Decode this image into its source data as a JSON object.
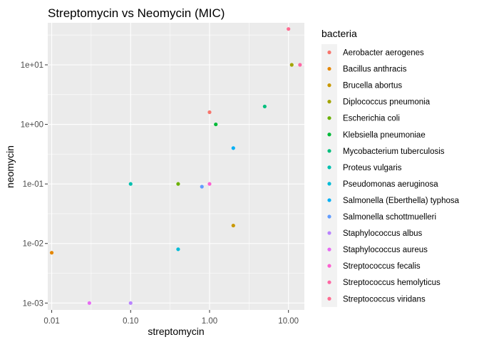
{
  "chart_data": {
    "type": "scatter",
    "title": "Streptomycin vs Neomycin (MIC)",
    "xlabel": "streptomycin",
    "ylabel": "neomycin",
    "x_scale": "log10",
    "y_scale": "log10",
    "xlim": [
      0.00891,
      15.9
    ],
    "ylim": [
      0.000766,
      50.8
    ],
    "x_ticks": [
      {
        "value": 0.01,
        "label": "0.01"
      },
      {
        "value": 0.1,
        "label": "0.10"
      },
      {
        "value": 1,
        "label": "1.00"
      },
      {
        "value": 10,
        "label": "10.00"
      }
    ],
    "y_ticks": [
      {
        "value": 0.001,
        "label": "1e-03"
      },
      {
        "value": 0.01,
        "label": "1e-02"
      },
      {
        "value": 0.1,
        "label": "1e-01"
      },
      {
        "value": 1,
        "label": "1e+00"
      },
      {
        "value": 10,
        "label": "1e+01"
      }
    ],
    "grid": true,
    "legend_title": "bacteria",
    "legend_position": "right",
    "series": [
      {
        "name": "Aerobacter aerogenes",
        "color": "#F8766D",
        "points": [
          {
            "x": 1.0,
            "y": 1.6
          }
        ]
      },
      {
        "name": "Bacillus anthracis",
        "color": "#E58700",
        "points": [
          {
            "x": 0.01,
            "y": 0.007
          }
        ]
      },
      {
        "name": "Brucella abortus",
        "color": "#C99800",
        "points": [
          {
            "x": 2.0,
            "y": 0.02
          }
        ]
      },
      {
        "name": "Diplococcus pneumonia",
        "color": "#A3A500",
        "points": [
          {
            "x": 11.0,
            "y": 10.0
          }
        ]
      },
      {
        "name": "Escherichia coli",
        "color": "#6BB100",
        "points": [
          {
            "x": 0.4,
            "y": 0.1
          }
        ]
      },
      {
        "name": "Klebsiella pneumoniae",
        "color": "#00BA38",
        "points": [
          {
            "x": 1.2,
            "y": 1.0
          }
        ]
      },
      {
        "name": "Mycobacterium tuberculosis",
        "color": "#00BF7D",
        "points": [
          {
            "x": 5.0,
            "y": 2.0
          }
        ]
      },
      {
        "name": "Proteus vulgaris",
        "color": "#00C0AF",
        "points": [
          {
            "x": 0.1,
            "y": 0.1
          }
        ]
      },
      {
        "name": "Pseudomonas aeruginosa",
        "color": "#00BCD8",
        "points": [
          {
            "x": 0.4,
            "y": 0.008
          }
        ]
      },
      {
        "name": "Salmonella (Eberthella) typhosa",
        "color": "#00B0F6",
        "points": [
          {
            "x": 2.0,
            "y": 0.4
          }
        ]
      },
      {
        "name": "Salmonella schottmuelleri",
        "color": "#619CFF",
        "points": [
          {
            "x": 0.8,
            "y": 0.09
          }
        ]
      },
      {
        "name": "Staphylococcus albus",
        "color": "#B983FF",
        "points": [
          {
            "x": 0.1,
            "y": 0.001
          }
        ]
      },
      {
        "name": "Staphylococcus aureus",
        "color": "#E76BF3",
        "points": [
          {
            "x": 0.03,
            "y": 0.001
          }
        ]
      },
      {
        "name": "Streptococcus fecalis",
        "color": "#FD61D1",
        "points": [
          {
            "x": 1.0,
            "y": 0.1
          }
        ]
      },
      {
        "name": "Streptococcus hemolyticus",
        "color": "#FF67A4",
        "points": [
          {
            "x": 14.0,
            "y": 10.0
          }
        ]
      },
      {
        "name": "Streptococcus viridans",
        "color": "#FF6C91",
        "points": [
          {
            "x": 10.0,
            "y": 40.0
          }
        ]
      }
    ]
  }
}
